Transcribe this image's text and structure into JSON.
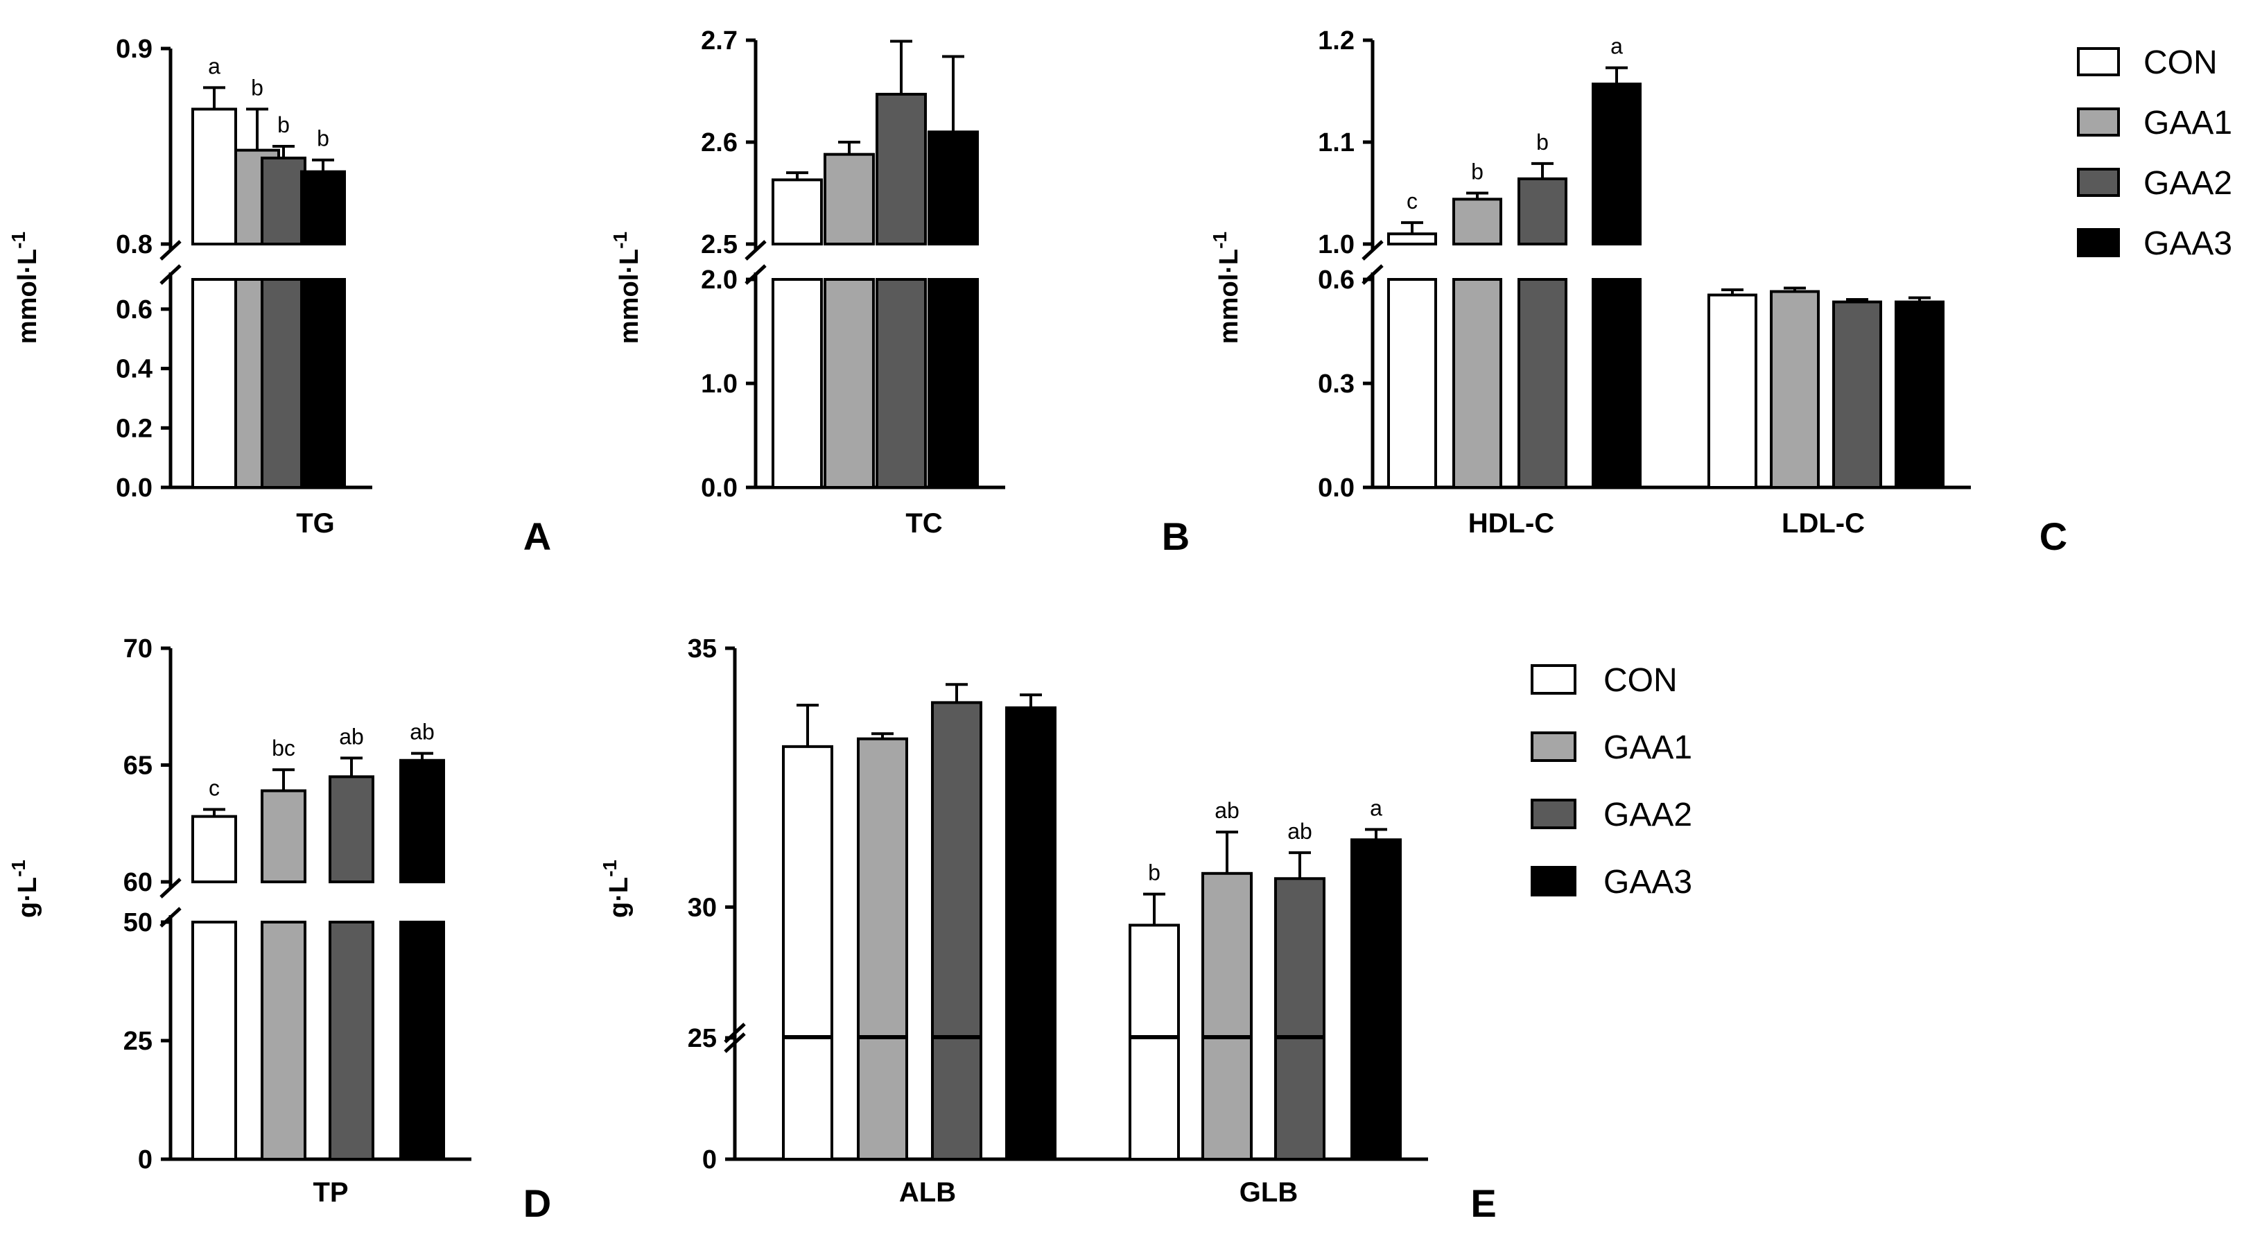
{
  "colors": {
    "CON": "#ffffff",
    "GAA1": "#a6a6a6",
    "GAA2": "#5a5a5a",
    "GAA3": "#000000",
    "axis": "#000000"
  },
  "legend": [
    "CON",
    "GAA1",
    "GAA2",
    "GAA3"
  ],
  "chart_data": [
    {
      "panel": "A",
      "type": "bar",
      "ylabel": "mmol·L-1",
      "categories": [
        "TG"
      ],
      "ylim_lower": [
        0,
        0.7
      ],
      "ylim_upper": [
        0.8,
        0.9
      ],
      "yticks_lower": [
        "0.0",
        "0.2",
        "0.4",
        "0.6"
      ],
      "yticks_upper": [
        "0.8",
        "0.9"
      ],
      "series": [
        {
          "name": "CON",
          "values": [
            0.869
          ],
          "errors": [
            0.011
          ],
          "letters": [
            "a"
          ]
        },
        {
          "name": "GAA1",
          "values": [
            0.848
          ],
          "errors": [
            0.021
          ],
          "letters": [
            "b"
          ]
        },
        {
          "name": "GAA2",
          "values": [
            0.844
          ],
          "errors": [
            0.006
          ],
          "letters": [
            "b"
          ]
        },
        {
          "name": "GAA3",
          "values": [
            0.837
          ],
          "errors": [
            0.006
          ],
          "letters": [
            "b"
          ]
        }
      ]
    },
    {
      "panel": "B",
      "type": "bar",
      "ylabel": "mmol·L-1",
      "categories": [
        "TC"
      ],
      "ylim_lower": [
        0,
        2.0
      ],
      "ylim_upper": [
        2.5,
        2.7
      ],
      "yticks_lower": [
        "0.0",
        "1.0",
        "2.0"
      ],
      "yticks_upper": [
        "2.5",
        "2.6",
        "2.7"
      ],
      "series": [
        {
          "name": "CON",
          "values": [
            2.563
          ],
          "errors": [
            0.007
          ],
          "letters": [
            ""
          ]
        },
        {
          "name": "GAA1",
          "values": [
            2.588
          ],
          "errors": [
            0.012
          ],
          "letters": [
            ""
          ]
        },
        {
          "name": "GAA2",
          "values": [
            2.647
          ],
          "errors": [
            0.052
          ],
          "letters": [
            ""
          ]
        },
        {
          "name": "GAA3",
          "values": [
            2.61
          ],
          "errors": [
            0.074
          ],
          "letters": [
            ""
          ]
        }
      ]
    },
    {
      "panel": "C",
      "type": "bar",
      "ylabel": "mmol·L-1",
      "categories": [
        "HDL-C",
        "LDL-C"
      ],
      "ylim_lower": [
        0,
        0.6
      ],
      "ylim_upper": [
        1.0,
        1.2
      ],
      "yticks_lower": [
        "0.0",
        "0.3",
        "0.6"
      ],
      "yticks_upper": [
        "1.0",
        "1.1",
        "1.2"
      ],
      "series": [
        {
          "name": "CON",
          "values": [
            1.01,
            0.555
          ],
          "errors": [
            0.011,
            0.015
          ],
          "letters": [
            "c",
            ""
          ]
        },
        {
          "name": "GAA1",
          "values": [
            1.044,
            0.565
          ],
          "errors": [
            0.006,
            0.01
          ],
          "letters": [
            "b",
            ""
          ]
        },
        {
          "name": "GAA2",
          "values": [
            1.064,
            0.535
          ],
          "errors": [
            0.015,
            0.007
          ],
          "letters": [
            "b",
            ""
          ]
        },
        {
          "name": "GAA3",
          "values": [
            1.157,
            0.535
          ],
          "errors": [
            0.016,
            0.012
          ],
          "letters": [
            "a",
            ""
          ]
        }
      ]
    },
    {
      "panel": "D",
      "type": "bar",
      "ylabel": "g·L-1",
      "categories": [
        "TP"
      ],
      "ylim_lower": [
        0,
        50
      ],
      "ylim_upper": [
        60,
        70
      ],
      "yticks_lower": [
        "0",
        "25",
        "50"
      ],
      "yticks_upper": [
        "60",
        "65",
        "70"
      ],
      "series": [
        {
          "name": "CON",
          "values": [
            62.8
          ],
          "errors": [
            0.3
          ],
          "letters": [
            "c"
          ]
        },
        {
          "name": "GAA1",
          "values": [
            63.9
          ],
          "errors": [
            0.9
          ],
          "letters": [
            "bc"
          ]
        },
        {
          "name": "GAA2",
          "values": [
            64.5
          ],
          "errors": [
            0.8
          ],
          "letters": [
            "ab"
          ]
        },
        {
          "name": "GAA3",
          "values": [
            65.2
          ],
          "errors": [
            0.3
          ],
          "letters": [
            "ab"
          ]
        }
      ]
    },
    {
      "panel": "E",
      "type": "bar",
      "ylabel": "g·L-1",
      "categories": [
        "ALB",
        "GLB"
      ],
      "ylim_lower": [
        0,
        25
      ],
      "ylim_upper": [
        27.5,
        35
      ],
      "yticks_lower": [
        "0",
        "25"
      ],
      "yticks_upper": [
        "30",
        "35"
      ],
      "series": [
        {
          "name": "CON",
          "values": [
            33.1,
            29.65
          ],
          "errors": [
            0.8,
            0.6
          ],
          "letters": [
            "",
            "b"
          ]
        },
        {
          "name": "GAA1",
          "values": [
            33.25,
            30.65
          ],
          "errors": [
            0.1,
            0.8
          ],
          "letters": [
            "",
            "ab"
          ]
        },
        {
          "name": "GAA2",
          "values": [
            33.95,
            30.55
          ],
          "errors": [
            0.35,
            0.5
          ],
          "letters": [
            "",
            "ab"
          ]
        },
        {
          "name": "GAA3",
          "values": [
            33.85,
            31.3
          ],
          "errors": [
            0.25,
            0.2
          ],
          "letters": [
            "",
            "a"
          ]
        }
      ]
    }
  ]
}
